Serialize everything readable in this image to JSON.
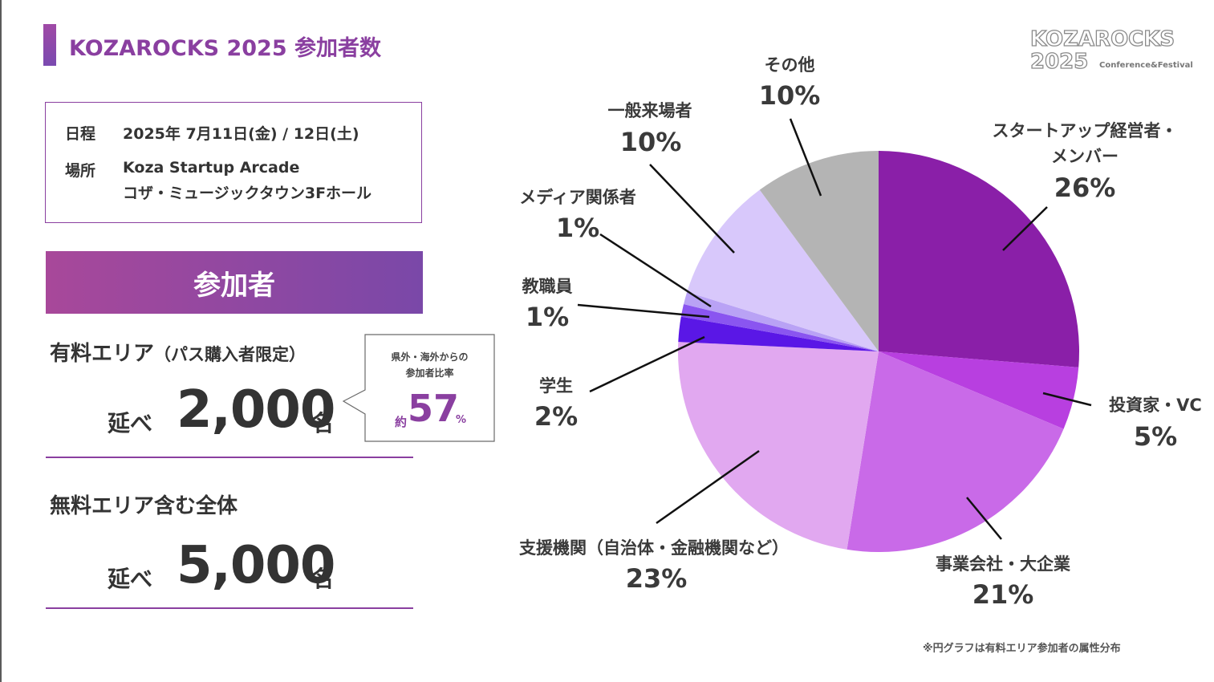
{
  "header": {
    "title": "KOZAROCKS 2025 参加者数"
  },
  "logo": {
    "line1": "KOZAROCKS",
    "line2": "2025",
    "tagline": "Conference&Festival"
  },
  "event_info": {
    "date_label": "日程",
    "date_value": "2025年 7月11日(金) / 12日(土)",
    "place_label": "場所",
    "place_value_1": "Koza Startup Arcade",
    "place_value_2": "コザ・ミュージックタウン3Fホール"
  },
  "participants_band": "参加者",
  "paid_area": {
    "label": "有料エリア",
    "note": "（パス購入者限定）",
    "prefix": "延べ",
    "value": "2,000",
    "unit": "名"
  },
  "callout": {
    "line1": "県外・海外からの",
    "line2": "参加者比率",
    "approx": "約",
    "value": "57",
    "unit": "%"
  },
  "free_area": {
    "label": "無料エリア含む全体",
    "prefix": "延べ",
    "value": "5,000",
    "unit": "名"
  },
  "footnote": "※円グラフは有料エリア参加者の属性分布",
  "chart_data": {
    "type": "pie",
    "start_angle_deg": 0,
    "direction": "clockwise",
    "slices": [
      {
        "label": "スタートアップ経営者・メンバー",
        "value": 26,
        "display": "26%",
        "color": "#8a1fa8"
      },
      {
        "label": "投資家・VC",
        "value": 5,
        "display": "5%",
        "color": "#b83fe0"
      },
      {
        "label": "事業会社・大企業",
        "value": 21,
        "display": "21%",
        "color": "#c96ae8"
      },
      {
        "label": "支援機関（自治体・金融機関など）",
        "value": 23,
        "display": "23%",
        "color": "#e1a8f0"
      },
      {
        "label": "学生",
        "value": 2,
        "display": "2%",
        "color": "#5a17e6"
      },
      {
        "label": "教職員",
        "value": 1,
        "display": "1%",
        "color": "#8a55f0"
      },
      {
        "label": "メディア関係者",
        "value": 1,
        "display": "1%",
        "color": "#b9a2f5"
      },
      {
        "label": "一般来場者",
        "value": 10,
        "display": "10%",
        "color": "#d8c8fb"
      },
      {
        "label": "その他",
        "value": 10,
        "display": "10%",
        "color": "#b4b4b4"
      }
    ]
  }
}
